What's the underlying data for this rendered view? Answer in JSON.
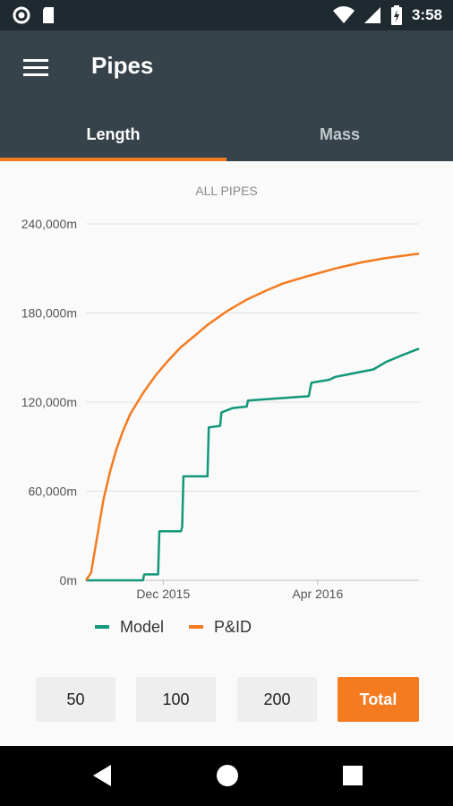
{
  "status": {
    "time": "3:58"
  },
  "appbar": {
    "title": "Pipes"
  },
  "tabs": [
    {
      "label": "Length",
      "active": true
    },
    {
      "label": "Mass",
      "active": false
    }
  ],
  "chart_data": {
    "type": "line",
    "title": "ALL PIPES",
    "ylim": [
      0,
      240000
    ],
    "yticks": [
      "0m",
      "60,000m",
      "120,000m",
      "180,000m",
      "240,000m"
    ],
    "xticks": [
      "Dec 2015",
      "Apr 2016"
    ],
    "grid": true,
    "legend_position": "bottom",
    "series": [
      {
        "name": "Model",
        "color": "#12977a",
        "step": true,
        "points": [
          [
            "2015-10-01",
            0
          ],
          [
            "2015-11-15",
            0
          ],
          [
            "2015-11-16",
            4000
          ],
          [
            "2015-11-27",
            4000
          ],
          [
            "2015-11-28",
            33000
          ],
          [
            "2015-12-15",
            33000
          ],
          [
            "2015-12-16",
            36000
          ],
          [
            "2015-12-17",
            70000
          ],
          [
            "2016-01-05",
            70000
          ],
          [
            "2016-01-06",
            103000
          ],
          [
            "2016-01-15",
            104000
          ],
          [
            "2016-01-16",
            113000
          ],
          [
            "2016-01-25",
            116000
          ],
          [
            "2016-02-05",
            117000
          ],
          [
            "2016-02-06",
            121000
          ],
          [
            "2016-03-25",
            124000
          ],
          [
            "2016-03-27",
            133000
          ],
          [
            "2016-04-10",
            135000
          ],
          [
            "2016-04-15",
            137000
          ],
          [
            "2016-05-15",
            142000
          ],
          [
            "2016-05-25",
            147000
          ],
          [
            "2016-06-05",
            151000
          ],
          [
            "2016-06-20",
            156000
          ]
        ]
      },
      {
        "name": "P&ID",
        "color": "#f47b20",
        "step": false,
        "points": [
          [
            "2015-10-01",
            0
          ],
          [
            "2015-10-05",
            5000
          ],
          [
            "2015-10-10",
            30000
          ],
          [
            "2015-10-15",
            55000
          ],
          [
            "2015-10-20",
            73000
          ],
          [
            "2015-10-25",
            88000
          ],
          [
            "2015-10-30",
            100000
          ],
          [
            "2015-11-05",
            112000
          ],
          [
            "2015-11-15",
            126000
          ],
          [
            "2015-11-25",
            138000
          ],
          [
            "2015-12-05",
            148000
          ],
          [
            "2015-12-15",
            157000
          ],
          [
            "2015-12-25",
            164000
          ],
          [
            "2016-01-05",
            172000
          ],
          [
            "2016-01-20",
            181000
          ],
          [
            "2016-02-05",
            189000
          ],
          [
            "2016-02-20",
            195000
          ],
          [
            "2016-03-05",
            200000
          ],
          [
            "2016-03-25",
            205000
          ],
          [
            "2016-04-15",
            210000
          ],
          [
            "2016-05-05",
            214000
          ],
          [
            "2016-05-25",
            217000
          ],
          [
            "2016-06-20",
            220000
          ]
        ]
      }
    ]
  },
  "buttons": [
    {
      "label": "50",
      "primary": false
    },
    {
      "label": "100",
      "primary": false
    },
    {
      "label": "200",
      "primary": false
    },
    {
      "label": "Total",
      "primary": true
    }
  ]
}
